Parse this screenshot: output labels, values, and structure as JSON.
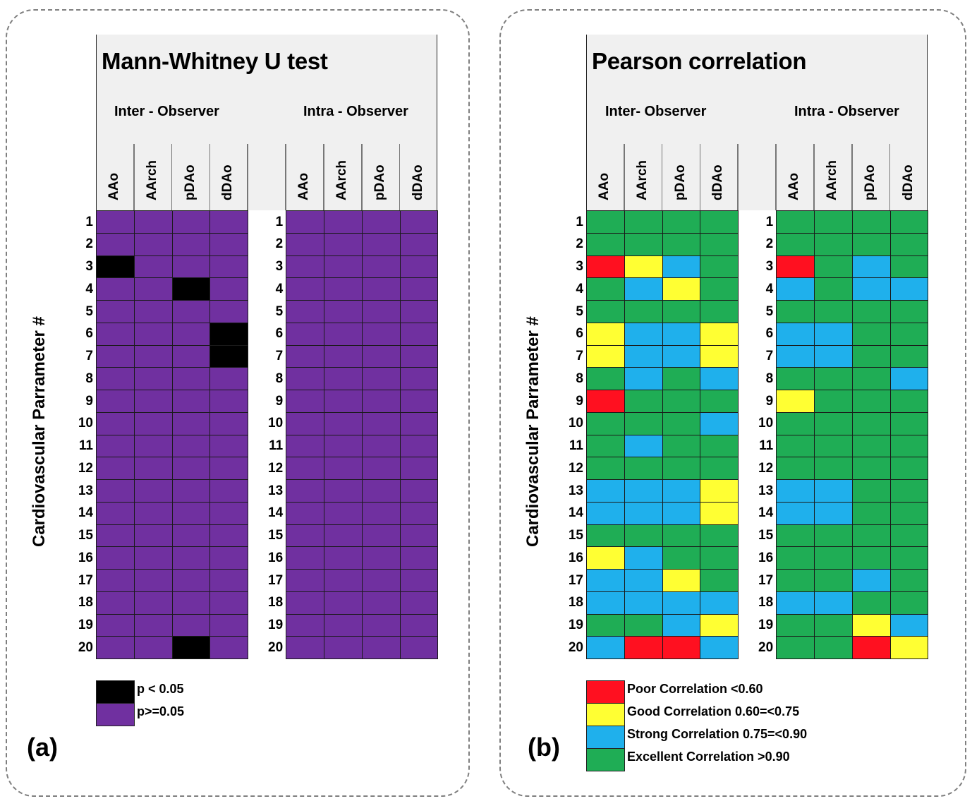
{
  "chart_data": [
    {
      "type": "heatmap",
      "panel_label": "(a)",
      "title": "Mann-Whitney U test",
      "ylabel": "Cardiovascular Parrameter #",
      "groups": [
        {
          "name": "Inter - Observer",
          "columns": [
            "AAo",
            "AArch",
            "pDAo",
            "dDAo"
          ]
        },
        {
          "name": "Intra - Observer",
          "columns": [
            "AAo",
            "AArch",
            "pDAo",
            "dDAo"
          ]
        }
      ],
      "rows": [
        "1",
        "2",
        "3",
        "4",
        "5",
        "6",
        "7",
        "8",
        "9",
        "10",
        "11",
        "12",
        "13",
        "14",
        "15",
        "16",
        "17",
        "18",
        "19",
        "20"
      ],
      "categories": {
        "sig": {
          "label": "p < 0.05",
          "color": "#000000"
        },
        "ns": {
          "label": "p>=0.05",
          "color": "#7030a0"
        }
      },
      "legend": [
        "sig",
        "ns"
      ],
      "values": {
        "Inter - Observer": [
          [
            "ns",
            "ns",
            "ns",
            "ns"
          ],
          [
            "ns",
            "ns",
            "ns",
            "ns"
          ],
          [
            "sig",
            "ns",
            "ns",
            "ns"
          ],
          [
            "ns",
            "ns",
            "sig",
            "ns"
          ],
          [
            "ns",
            "ns",
            "ns",
            "ns"
          ],
          [
            "ns",
            "ns",
            "ns",
            "sig"
          ],
          [
            "ns",
            "ns",
            "ns",
            "sig"
          ],
          [
            "ns",
            "ns",
            "ns",
            "ns"
          ],
          [
            "ns",
            "ns",
            "ns",
            "ns"
          ],
          [
            "ns",
            "ns",
            "ns",
            "ns"
          ],
          [
            "ns",
            "ns",
            "ns",
            "ns"
          ],
          [
            "ns",
            "ns",
            "ns",
            "ns"
          ],
          [
            "ns",
            "ns",
            "ns",
            "ns"
          ],
          [
            "ns",
            "ns",
            "ns",
            "ns"
          ],
          [
            "ns",
            "ns",
            "ns",
            "ns"
          ],
          [
            "ns",
            "ns",
            "ns",
            "ns"
          ],
          [
            "ns",
            "ns",
            "ns",
            "ns"
          ],
          [
            "ns",
            "ns",
            "ns",
            "ns"
          ],
          [
            "ns",
            "ns",
            "ns",
            "ns"
          ],
          [
            "ns",
            "ns",
            "sig",
            "ns"
          ]
        ],
        "Intra - Observer": [
          [
            "ns",
            "ns",
            "ns",
            "ns"
          ],
          [
            "ns",
            "ns",
            "ns",
            "ns"
          ],
          [
            "ns",
            "ns",
            "ns",
            "ns"
          ],
          [
            "ns",
            "ns",
            "ns",
            "ns"
          ],
          [
            "ns",
            "ns",
            "ns",
            "ns"
          ],
          [
            "ns",
            "ns",
            "ns",
            "ns"
          ],
          [
            "ns",
            "ns",
            "ns",
            "ns"
          ],
          [
            "ns",
            "ns",
            "ns",
            "ns"
          ],
          [
            "ns",
            "ns",
            "ns",
            "ns"
          ],
          [
            "ns",
            "ns",
            "ns",
            "ns"
          ],
          [
            "ns",
            "ns",
            "ns",
            "ns"
          ],
          [
            "ns",
            "ns",
            "ns",
            "ns"
          ],
          [
            "ns",
            "ns",
            "ns",
            "ns"
          ],
          [
            "ns",
            "ns",
            "ns",
            "ns"
          ],
          [
            "ns",
            "ns",
            "ns",
            "ns"
          ],
          [
            "ns",
            "ns",
            "ns",
            "ns"
          ],
          [
            "ns",
            "ns",
            "ns",
            "ns"
          ],
          [
            "ns",
            "ns",
            "ns",
            "ns"
          ],
          [
            "ns",
            "ns",
            "ns",
            "ns"
          ],
          [
            "ns",
            "ns",
            "ns",
            "ns"
          ]
        ]
      }
    },
    {
      "type": "heatmap",
      "panel_label": "(b)",
      "title": "Pearson correlation",
      "ylabel": "Cardiovascular Parrameter #",
      "groups": [
        {
          "name": "Inter- Observer",
          "columns": [
            "AAo",
            "AArch",
            "pDAo",
            "dDAo"
          ]
        },
        {
          "name": "Intra - Observer",
          "columns": [
            "AAo",
            "AArch",
            "pDAo",
            "dDAo"
          ]
        }
      ],
      "rows": [
        "1",
        "2",
        "3",
        "4",
        "5",
        "6",
        "7",
        "8",
        "9",
        "10",
        "11",
        "12",
        "13",
        "14",
        "15",
        "16",
        "17",
        "18",
        "19",
        "20"
      ],
      "categories": {
        "P": {
          "label": "Poor Correlation <0.60",
          "color": "#ff1020"
        },
        "G": {
          "label": "Good Correlation  0.60=<0.75",
          "color": "#ffff33"
        },
        "S": {
          "label": "Strong Correlation 0.75=<0.90",
          "color": "#1fb0ec"
        },
        "E": {
          "label": "Excellent Correlation >0.90",
          "color": "#1fad55"
        }
      },
      "legend": [
        "P",
        "G",
        "S",
        "E"
      ],
      "values": {
        "Inter- Observer": [
          [
            "E",
            "E",
            "E",
            "E"
          ],
          [
            "E",
            "E",
            "E",
            "E"
          ],
          [
            "P",
            "G",
            "S",
            "E"
          ],
          [
            "E",
            "S",
            "G",
            "E"
          ],
          [
            "E",
            "E",
            "E",
            "E"
          ],
          [
            "G",
            "S",
            "S",
            "G"
          ],
          [
            "G",
            "S",
            "S",
            "G"
          ],
          [
            "E",
            "S",
            "E",
            "S"
          ],
          [
            "P",
            "E",
            "E",
            "E"
          ],
          [
            "E",
            "E",
            "E",
            "S"
          ],
          [
            "E",
            "S",
            "E",
            "E"
          ],
          [
            "E",
            "E",
            "E",
            "E"
          ],
          [
            "S",
            "S",
            "S",
            "G"
          ],
          [
            "S",
            "S",
            "S",
            "G"
          ],
          [
            "E",
            "E",
            "E",
            "E"
          ],
          [
            "G",
            "S",
            "E",
            "E"
          ],
          [
            "S",
            "S",
            "G",
            "E"
          ],
          [
            "S",
            "S",
            "S",
            "S"
          ],
          [
            "E",
            "E",
            "S",
            "G"
          ],
          [
            "S",
            "P",
            "P",
            "S"
          ]
        ],
        "Intra - Observer": [
          [
            "E",
            "E",
            "E",
            "E"
          ],
          [
            "E",
            "E",
            "E",
            "E"
          ],
          [
            "P",
            "E",
            "S",
            "E"
          ],
          [
            "S",
            "E",
            "S",
            "S"
          ],
          [
            "E",
            "E",
            "E",
            "E"
          ],
          [
            "S",
            "S",
            "E",
            "E"
          ],
          [
            "S",
            "S",
            "E",
            "E"
          ],
          [
            "E",
            "E",
            "E",
            "S"
          ],
          [
            "G",
            "E",
            "E",
            "E"
          ],
          [
            "E",
            "E",
            "E",
            "E"
          ],
          [
            "E",
            "E",
            "E",
            "E"
          ],
          [
            "E",
            "E",
            "E",
            "E"
          ],
          [
            "S",
            "S",
            "E",
            "E"
          ],
          [
            "S",
            "S",
            "E",
            "E"
          ],
          [
            "E",
            "E",
            "E",
            "E"
          ],
          [
            "E",
            "E",
            "E",
            "E"
          ],
          [
            "E",
            "E",
            "S",
            "E"
          ],
          [
            "S",
            "S",
            "E",
            "E"
          ],
          [
            "E",
            "E",
            "G",
            "S"
          ],
          [
            "E",
            "E",
            "P",
            "G"
          ]
        ]
      }
    }
  ]
}
